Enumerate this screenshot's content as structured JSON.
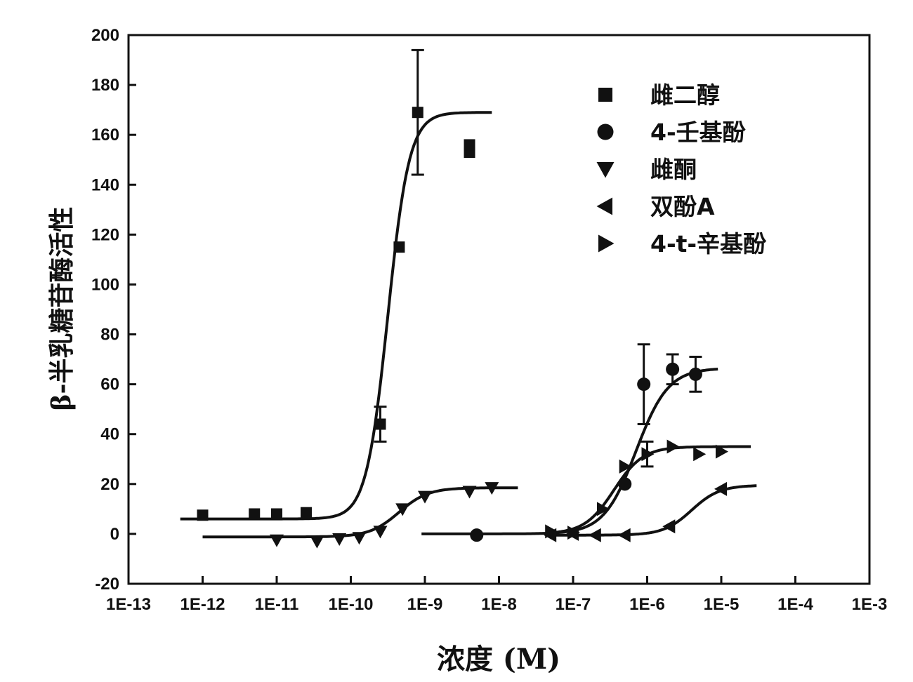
{
  "chart_data": {
    "type": "scatter",
    "xlabel": "浓度 (M)",
    "ylabel": "β-半乳糖苷酶活性",
    "x_scale": "log",
    "xlim": [
      1e-13,
      0.001
    ],
    "ylim": [
      -20,
      200
    ],
    "x_ticks": [
      {
        "value": 1e-13,
        "label": "1E-13"
      },
      {
        "value": 1e-12,
        "label": "1E-12"
      },
      {
        "value": 1e-11,
        "label": "1E-11"
      },
      {
        "value": 1e-10,
        "label": "1E-10"
      },
      {
        "value": 1e-09,
        "label": "1E-9"
      },
      {
        "value": 1e-08,
        "label": "1E-8"
      },
      {
        "value": 1e-07,
        "label": "1E-7"
      },
      {
        "value": 1e-06,
        "label": "1E-6"
      },
      {
        "value": 1e-05,
        "label": "1E-5"
      },
      {
        "value": 0.0001,
        "label": "1E-4"
      },
      {
        "value": 0.001,
        "label": "1E-3"
      }
    ],
    "y_ticks": [
      {
        "value": -20,
        "label": "-20"
      },
      {
        "value": 0,
        "label": "0"
      },
      {
        "value": 20,
        "label": "20"
      },
      {
        "value": 40,
        "label": "40"
      },
      {
        "value": 60,
        "label": "60"
      },
      {
        "value": 80,
        "label": "80"
      },
      {
        "value": 100,
        "label": "100"
      },
      {
        "value": 120,
        "label": "120"
      },
      {
        "value": 140,
        "label": "140"
      },
      {
        "value": 160,
        "label": "160"
      },
      {
        "value": 180,
        "label": "180"
      },
      {
        "value": 200,
        "label": "200"
      }
    ],
    "grid": false,
    "legend_position": "top-right",
    "series": [
      {
        "name": "雌二醇",
        "marker": "square",
        "points": [
          {
            "x": 1e-12,
            "y": 7.5
          },
          {
            "x": 5e-12,
            "y": 8
          },
          {
            "x": 1e-11,
            "y": 8
          },
          {
            "x": 2.5e-11,
            "y": 8.5
          },
          {
            "x": 2.5e-10,
            "y": 44,
            "err": 7
          },
          {
            "x": 4.5e-10,
            "y": 115
          },
          {
            "x": 8e-10,
            "y": 169,
            "err": 25
          },
          {
            "x": 4e-09,
            "y": 153
          },
          {
            "x": 4e-09,
            "y": 156
          }
        ],
        "fit": {
          "bottom": 6,
          "top": 169,
          "log_ec50": -9.5,
          "hill": 3.0,
          "x_start": 5e-13,
          "x_end": 8e-09
        }
      },
      {
        "name": "4-壬基酚",
        "marker": "circle",
        "points": [
          {
            "x": 5e-09,
            "y": -0.5
          },
          {
            "x": 5e-07,
            "y": 20
          },
          {
            "x": 9e-07,
            "y": 60,
            "err": 16
          },
          {
            "x": 2.2e-06,
            "y": 66,
            "err": 6
          },
          {
            "x": 4.5e-06,
            "y": 64,
            "err": 7
          }
        ],
        "fit": {
          "bottom": 0,
          "top": 66.5,
          "log_ec50": -6.15,
          "hill": 2.0,
          "x_start": 9e-10,
          "x_end": 9e-06
        }
      },
      {
        "name": "雌酮",
        "marker": "triangle-down",
        "points": [
          {
            "x": 1e-11,
            "y": -2.5
          },
          {
            "x": 3.5e-11,
            "y": -3
          },
          {
            "x": 7e-11,
            "y": -2
          },
          {
            "x": 1.3e-10,
            "y": -1.5
          },
          {
            "x": 2.5e-10,
            "y": 1
          },
          {
            "x": 5e-10,
            "y": 10
          },
          {
            "x": 1e-09,
            "y": 15
          },
          {
            "x": 4e-09,
            "y": 17
          },
          {
            "x": 8e-09,
            "y": 18.5
          }
        ],
        "fit": {
          "bottom": -1.2,
          "top": 18.5,
          "log_ec50": -9.35,
          "hill": 2.2,
          "x_start": 1e-12,
          "x_end": 1.8e-08
        }
      },
      {
        "name": "双酚A",
        "marker": "triangle-left",
        "points": [
          {
            "x": 5e-08,
            "y": -0.5
          },
          {
            "x": 1e-07,
            "y": 0
          },
          {
            "x": 2e-07,
            "y": -0.5
          },
          {
            "x": 5e-07,
            "y": -0.5
          },
          {
            "x": 2e-06,
            "y": 3
          },
          {
            "x": 1e-05,
            "y": 18
          }
        ],
        "fit": {
          "bottom": -0.5,
          "top": 19.5,
          "log_ec50": -5.4,
          "hill": 2.3,
          "x_start": 5e-08,
          "x_end": 3e-05
        }
      },
      {
        "name": "4-t-辛基酚",
        "marker": "triangle-right",
        "points": [
          {
            "x": 5e-08,
            "y": 1
          },
          {
            "x": 1e-07,
            "y": 0.5
          },
          {
            "x": 2.5e-07,
            "y": 10
          },
          {
            "x": 5e-07,
            "y": 27
          },
          {
            "x": 1e-06,
            "y": 32,
            "err": 5
          },
          {
            "x": 2.2e-06,
            "y": 35
          },
          {
            "x": 5e-06,
            "y": 32
          },
          {
            "x": 1e-05,
            "y": 33
          }
        ],
        "fit": {
          "bottom": 0,
          "top": 35,
          "log_ec50": -6.45,
          "hill": 2.2,
          "x_start": 5e-08,
          "x_end": 2.5e-05
        }
      }
    ]
  }
}
